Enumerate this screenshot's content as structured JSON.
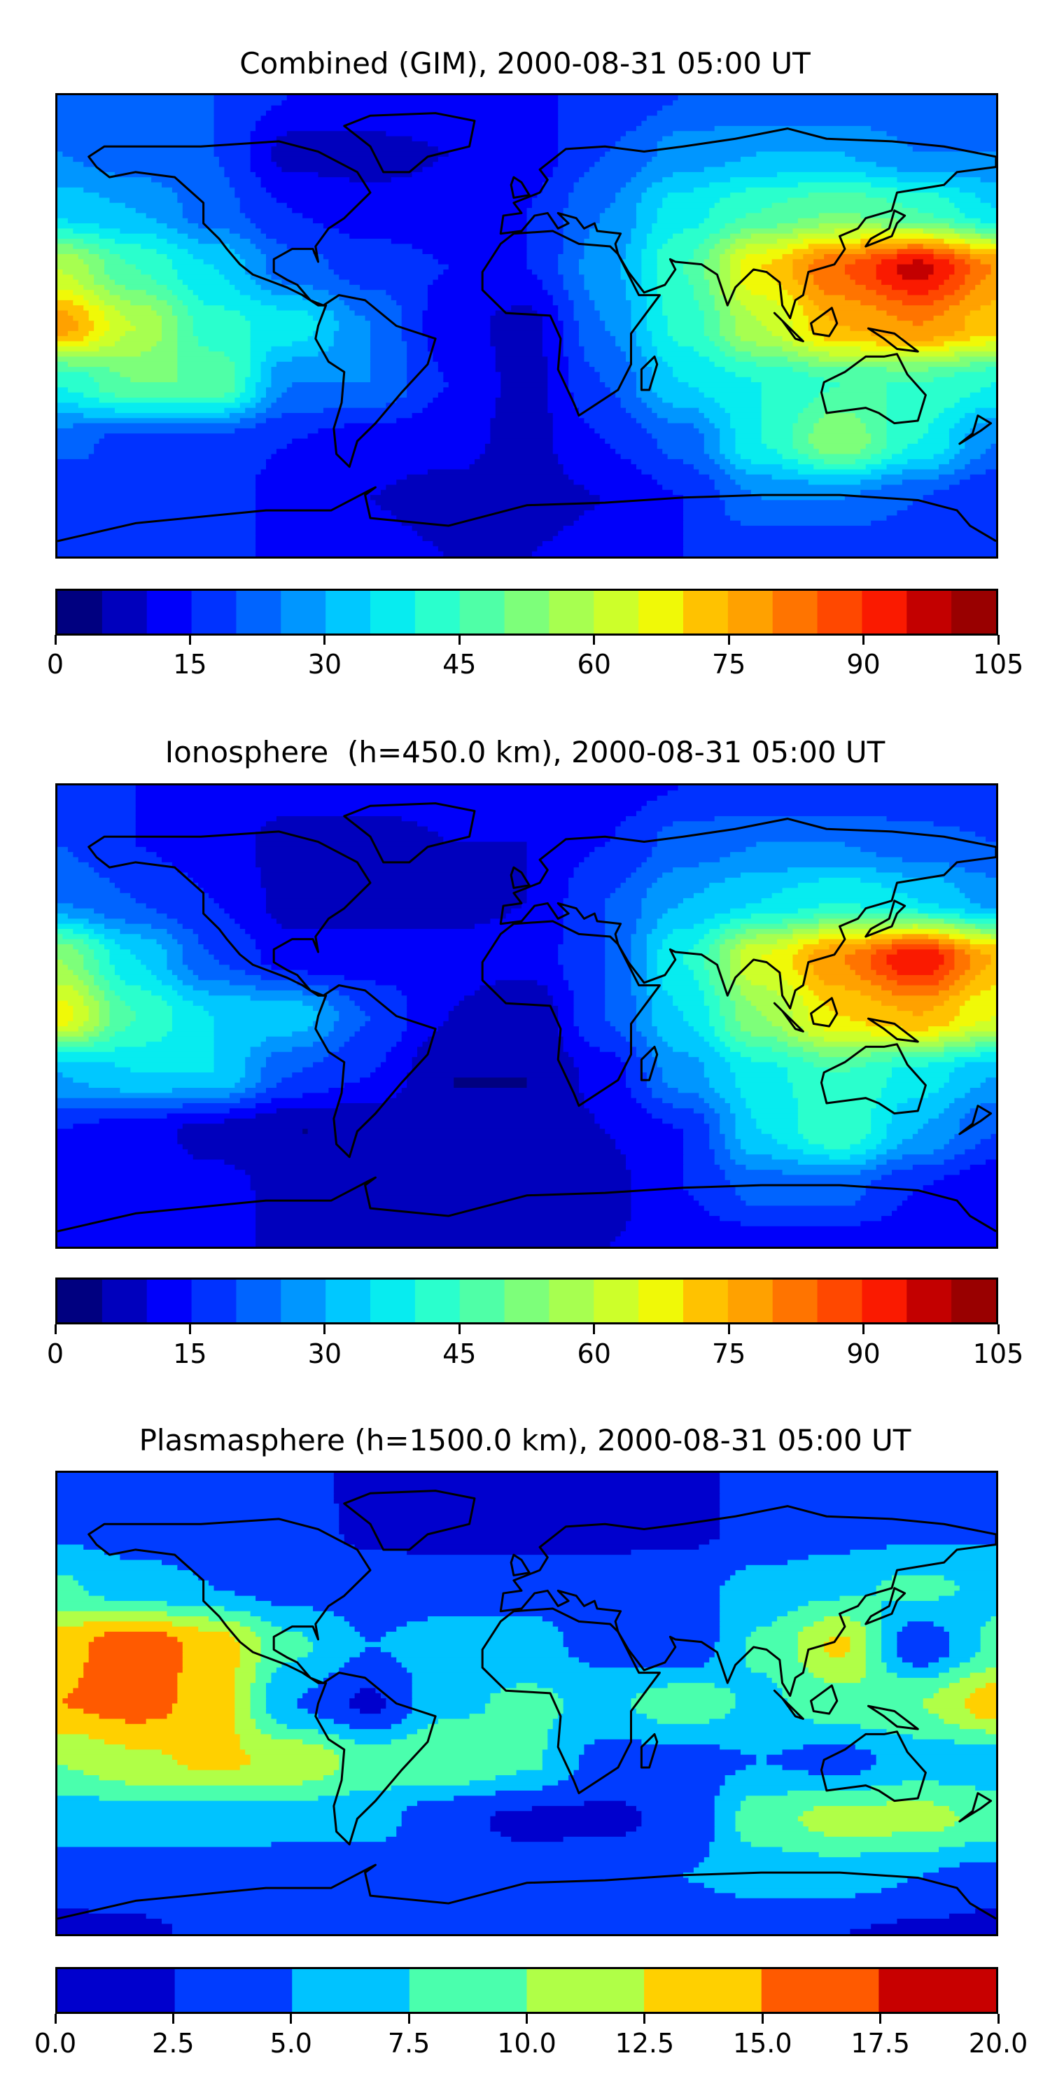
{
  "chart_data": [
    {
      "type": "heatmap",
      "title": "Combined (GIM), 2000-08-31 05:00 UT",
      "lon": [
        -180,
        -150,
        -120,
        -90,
        -60,
        -30,
        0,
        30,
        60,
        90,
        120,
        150,
        180
      ],
      "lat": [
        90,
        67.5,
        45,
        22.5,
        0,
        -22.5,
        -45,
        -67.5,
        -90
      ],
      "values": [
        [
          20,
          20,
          20,
          15,
          15,
          15,
          15,
          15,
          20,
          20,
          20,
          20,
          20
        ],
        [
          25,
          22,
          20,
          8,
          8,
          10,
          12,
          20,
          27,
          30,
          30,
          25,
          25
        ],
        [
          33,
          30,
          22,
          15,
          12,
          12,
          15,
          25,
          38,
          45,
          50,
          45,
          35
        ],
        [
          60,
          45,
          35,
          22,
          18,
          15,
          15,
          28,
          45,
          70,
          85,
          97,
          80
        ],
        [
          78,
          60,
          42,
          38,
          25,
          12,
          8,
          25,
          42,
          60,
          75,
          80,
          72
        ],
        [
          40,
          50,
          50,
          25,
          25,
          15,
          8,
          20,
          35,
          40,
          45,
          45,
          40
        ],
        [
          22,
          18,
          18,
          15,
          12,
          12,
          8,
          15,
          22,
          40,
          55,
          40,
          25
        ],
        [
          15,
          20,
          18,
          12,
          10,
          8,
          8,
          10,
          15,
          25,
          25,
          20,
          15
        ],
        [
          20,
          15,
          15,
          15,
          12,
          10,
          10,
          12,
          15,
          15,
          15,
          15,
          20
        ]
      ],
      "levels_range": [
        0,
        105
      ],
      "level_step": 5,
      "colorbar_ticks": [
        "0",
        "15",
        "30",
        "45",
        "60",
        "75",
        "90",
        "105"
      ],
      "colors": [
        "#000080",
        "#0000bd",
        "#0000fa",
        "#0032ff",
        "#0064ff",
        "#0096ff",
        "#00c8ff",
        "#07ecf0",
        "#2affcd",
        "#4fffa7",
        "#7dff7a",
        "#a7ff50",
        "#cdff2a",
        "#f0f907",
        "#ffc200",
        "#ffa100",
        "#ff7400",
        "#ff4800",
        "#fa1a00",
        "#c30000",
        "#990000"
      ]
    },
    {
      "type": "heatmap",
      "title": "Ionosphere  (h=450.0 km), 2000-08-31 05:00 UT",
      "lon": [
        -180,
        -150,
        -120,
        -90,
        -60,
        -30,
        0,
        30,
        60,
        90,
        120,
        150,
        180
      ],
      "lat": [
        90,
        67.5,
        45,
        22.5,
        0,
        -22.5,
        -45,
        -67.5,
        -90
      ],
      "values": [
        [
          15,
          15,
          15,
          12,
          12,
          12,
          12,
          12,
          15,
          15,
          15,
          15,
          15
        ],
        [
          20,
          15,
          12,
          8,
          8,
          10,
          10,
          15,
          22,
          25,
          25,
          22,
          20
        ],
        [
          25,
          20,
          15,
          8,
          8,
          8,
          10,
          20,
          30,
          35,
          40,
          35,
          28
        ],
        [
          55,
          35,
          20,
          12,
          12,
          12,
          12,
          20,
          40,
          65,
          80,
          95,
          75
        ],
        [
          68,
          45,
          35,
          33,
          20,
          10,
          5,
          20,
          35,
          55,
          70,
          75,
          65
        ],
        [
          30,
          35,
          35,
          20,
          15,
          5,
          5,
          12,
          28,
          38,
          45,
          38,
          30
        ],
        [
          15,
          12,
          8,
          5,
          5,
          5,
          5,
          10,
          15,
          35,
          45,
          30,
          20
        ],
        [
          10,
          12,
          12,
          8,
          8,
          5,
          5,
          8,
          15,
          22,
          22,
          15,
          10
        ],
        [
          12,
          10,
          10,
          10,
          10,
          8,
          8,
          10,
          12,
          12,
          12,
          12,
          12
        ]
      ],
      "levels_range": [
        0,
        105
      ],
      "level_step": 5,
      "colorbar_ticks": [
        "0",
        "15",
        "30",
        "45",
        "60",
        "75",
        "90",
        "105"
      ],
      "colors": [
        "#000080",
        "#0000bd",
        "#0000fa",
        "#0032ff",
        "#0064ff",
        "#0096ff",
        "#00c8ff",
        "#07ecf0",
        "#2affcd",
        "#4fffa7",
        "#7dff7a",
        "#a7ff50",
        "#cdff2a",
        "#f0f907",
        "#ffc200",
        "#ffa100",
        "#ff7400",
        "#ff4800",
        "#fa1a00",
        "#c30000",
        "#990000"
      ]
    },
    {
      "type": "heatmap",
      "title": "Plasmasphere (h=1500.0 km), 2000-08-31 05:00 UT",
      "lon": [
        -180,
        -150,
        -120,
        -90,
        -60,
        -30,
        0,
        30,
        60,
        90,
        120,
        150,
        180
      ],
      "lat": [
        90,
        67.5,
        45,
        22.5,
        0,
        -22.5,
        -45,
        -67.5,
        -90
      ],
      "values": [
        [
          4,
          4,
          4,
          3,
          2,
          1.5,
          1.5,
          1.5,
          2,
          3,
          4,
          4,
          4
        ],
        [
          4.5,
          4,
          4,
          3.5,
          2,
          1.5,
          1.5,
          1.5,
          2,
          3,
          4,
          4.5,
          4.5
        ],
        [
          8,
          6,
          5,
          4,
          4,
          4,
          4,
          4.5,
          4,
          6,
          7,
          8,
          7
        ],
        [
          14,
          17,
          14,
          8,
          5,
          6,
          6,
          4,
          3,
          8,
          13,
          3,
          8
        ],
        [
          15,
          16,
          14,
          5,
          2,
          7,
          8,
          7,
          9,
          7,
          9,
          10,
          14
        ],
        [
          10,
          12,
          13,
          12,
          9,
          10,
          8,
          4,
          4,
          5,
          4,
          6,
          6
        ],
        [
          6,
          6,
          6,
          6,
          6,
          3,
          2,
          2,
          3,
          9,
          11,
          11,
          9
        ],
        [
          4,
          4,
          4,
          3.5,
          3.5,
          3.5,
          3.5,
          4,
          5,
          6,
          6,
          5,
          4
        ],
        [
          1.5,
          2,
          3,
          3,
          3,
          3,
          3,
          3,
          3,
          3,
          2.5,
          2,
          1.5
        ]
      ],
      "levels_range": [
        0,
        20
      ],
      "level_step": 2.5,
      "colorbar_ticks": [
        "0.0",
        "2.5",
        "5.0",
        "7.5",
        "10.0",
        "12.5",
        "15.0",
        "17.5",
        "20.0"
      ],
      "colors": [
        "#0000cd",
        "#003cff",
        "#00c3ff",
        "#4affad",
        "#b0ff47",
        "#ffd000",
        "#ff5a00",
        "#c80000"
      ]
    }
  ]
}
